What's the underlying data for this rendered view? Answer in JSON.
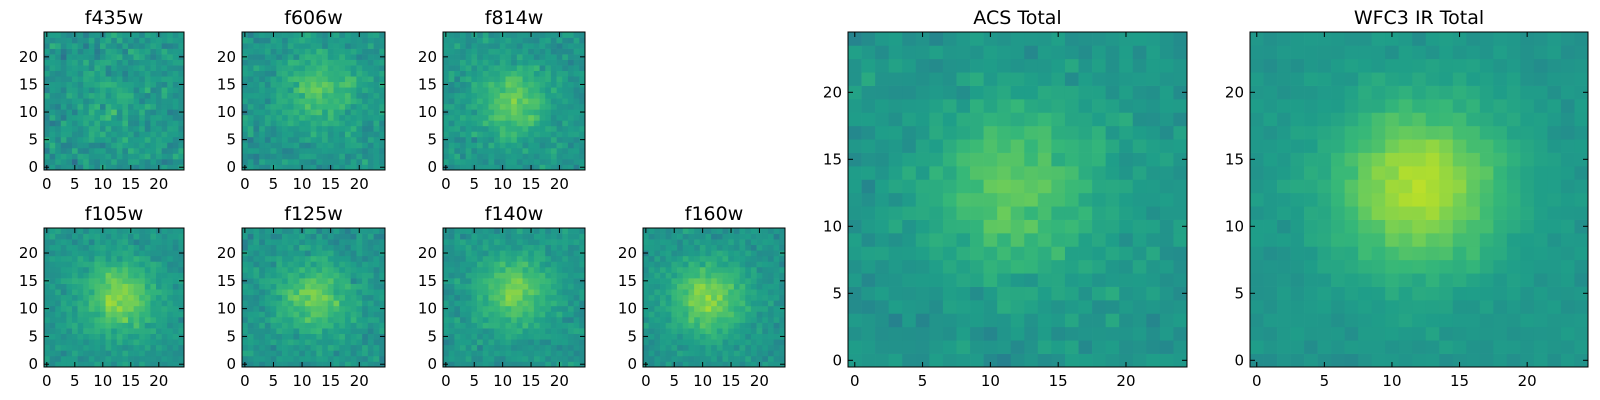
{
  "chart_data": {
    "type": "heatmap",
    "colormap": "viridis",
    "grid": false,
    "legend": "none",
    "panels": [
      {
        "id": "f435w",
        "title": "f435w",
        "nx": 25,
        "ny": 25,
        "xlim": [
          -0.5,
          24.5
        ],
        "ylim": [
          -0.5,
          24.5
        ],
        "xticks": [
          0,
          5,
          10,
          15,
          20
        ],
        "yticks": [
          0,
          5,
          10,
          15,
          20
        ],
        "peak": [
          12,
          12
        ],
        "concentration": 0.15,
        "noise": 0.55,
        "seed": 11
      },
      {
        "id": "f606w",
        "title": "f606w",
        "nx": 25,
        "ny": 25,
        "xlim": [
          -0.5,
          24.5
        ],
        "ylim": [
          -0.5,
          24.5
        ],
        "xticks": [
          0,
          5,
          10,
          15,
          20
        ],
        "yticks": [
          0,
          5,
          10,
          15,
          20
        ],
        "peak": [
          13,
          14
        ],
        "concentration": 0.45,
        "noise": 0.45,
        "seed": 23
      },
      {
        "id": "f814w",
        "title": "f814w",
        "nx": 25,
        "ny": 25,
        "xlim": [
          -0.5,
          24.5
        ],
        "ylim": [
          -0.5,
          24.5
        ],
        "xticks": [
          0,
          5,
          10,
          15,
          20
        ],
        "yticks": [
          0,
          5,
          10,
          15,
          20
        ],
        "peak": [
          12,
          12
        ],
        "concentration": 0.5,
        "noise": 0.42,
        "seed": 37
      },
      {
        "id": "f105w",
        "title": "f105w",
        "nx": 25,
        "ny": 25,
        "xlim": [
          -0.5,
          24.5
        ],
        "ylim": [
          -0.5,
          24.5
        ],
        "xticks": [
          0,
          5,
          10,
          15,
          20
        ],
        "yticks": [
          0,
          5,
          10,
          15,
          20
        ],
        "peak": [
          13,
          12
        ],
        "concentration": 0.6,
        "noise": 0.35,
        "seed": 41
      },
      {
        "id": "f125w",
        "title": "f125w",
        "nx": 25,
        "ny": 25,
        "xlim": [
          -0.5,
          24.5
        ],
        "ylim": [
          -0.5,
          24.5
        ],
        "xticks": [
          0,
          5,
          10,
          15,
          20
        ],
        "yticks": [
          0,
          5,
          10,
          15,
          20
        ],
        "peak": [
          12,
          12
        ],
        "concentration": 0.5,
        "noise": 0.42,
        "seed": 53
      },
      {
        "id": "f140w",
        "title": "f140w",
        "nx": 25,
        "ny": 25,
        "xlim": [
          -0.5,
          24.5
        ],
        "ylim": [
          -0.5,
          24.5
        ],
        "xticks": [
          0,
          5,
          10,
          15,
          20
        ],
        "yticks": [
          0,
          5,
          10,
          15,
          20
        ],
        "peak": [
          12,
          13
        ],
        "concentration": 0.55,
        "noise": 0.38,
        "seed": 67
      },
      {
        "id": "f160w",
        "title": "f160w",
        "nx": 25,
        "ny": 25,
        "xlim": [
          -0.5,
          24.5
        ],
        "ylim": [
          -0.5,
          24.5
        ],
        "xticks": [
          0,
          5,
          10,
          15,
          20
        ],
        "yticks": [
          0,
          5,
          10,
          15,
          20
        ],
        "peak": [
          11,
          12
        ],
        "concentration": 0.6,
        "noise": 0.35,
        "seed": 79
      },
      {
        "id": "acs-total",
        "title": "ACS Total",
        "nx": 25,
        "ny": 25,
        "xlim": [
          -0.5,
          24.5
        ],
        "ylim": [
          -0.5,
          24.5
        ],
        "xticks": [
          0,
          5,
          10,
          15,
          20
        ],
        "yticks": [
          0,
          5,
          10,
          15,
          20
        ],
        "peak": [
          12,
          13
        ],
        "concentration": 0.5,
        "noise": 0.32,
        "seed": 83
      },
      {
        "id": "wfc3-ir-total",
        "title": "WFC3 IR Total",
        "nx": 25,
        "ny": 25,
        "xlim": [
          -0.5,
          24.5
        ],
        "ylim": [
          -0.5,
          24.5
        ],
        "xticks": [
          0,
          5,
          10,
          15,
          20
        ],
        "yticks": [
          0,
          5,
          10,
          15,
          20
        ],
        "peak": [
          12,
          13
        ],
        "concentration": 0.75,
        "noise": 0.18,
        "seed": 97
      }
    ]
  }
}
